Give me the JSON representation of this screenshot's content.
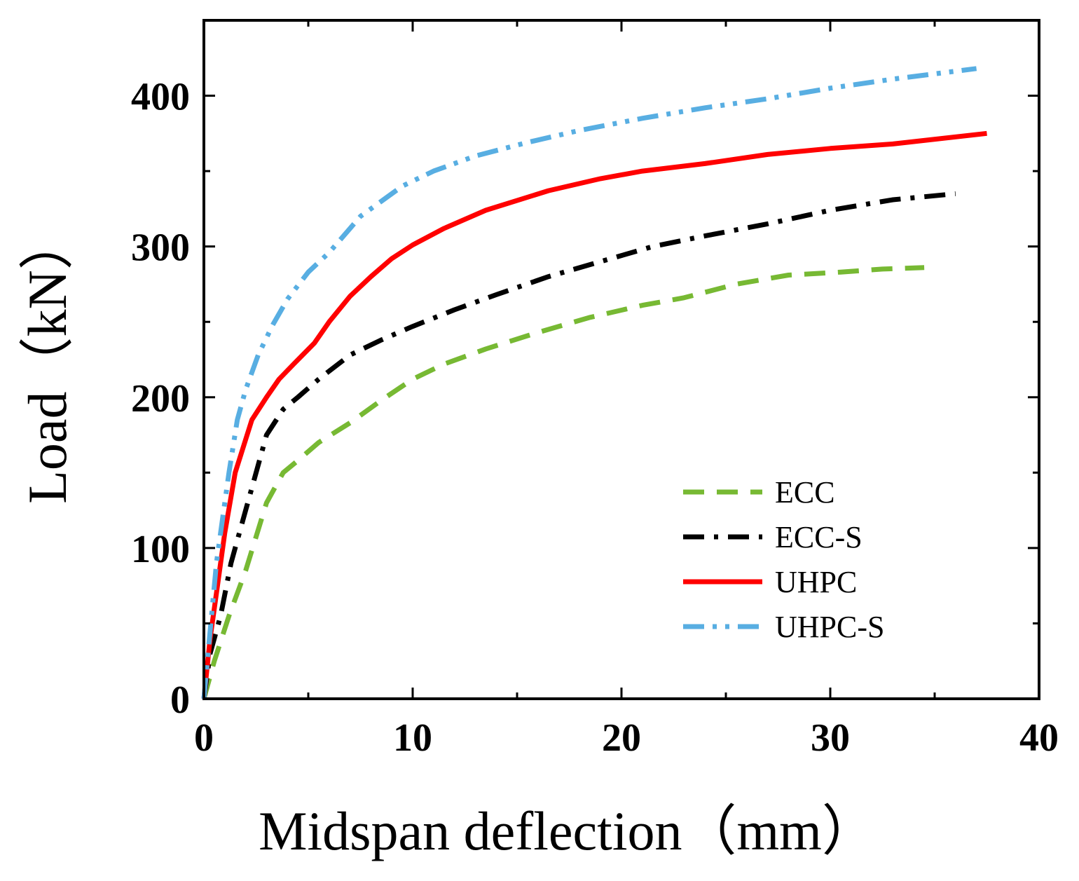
{
  "chart_data": {
    "type": "line",
    "title": "",
    "xlabel": "Midspan deflection（mm）",
    "ylabel": "Load（kN）",
    "xlim": [
      0,
      40
    ],
    "ylim": [
      0,
      450
    ],
    "x_ticks": [
      0,
      10,
      20,
      30,
      40
    ],
    "y_ticks": [
      0,
      100,
      200,
      300,
      400
    ],
    "grid": false,
    "legend_position": "lower-right",
    "series": [
      {
        "name": "ECC",
        "color": "#77b933",
        "dash": "dashed",
        "x": [
          0,
          0.5,
          1.2,
          2.0,
          3.0,
          3.8,
          4.5,
          5.5,
          7.0,
          8.5,
          10.0,
          11.5,
          13.5,
          16.0,
          18.5,
          21.0,
          23.0,
          25.5,
          28.0,
          30.5,
          32.5,
          34.5
        ],
        "y": [
          0,
          25,
          55,
          85,
          130,
          150,
          158,
          170,
          183,
          198,
          212,
          222,
          232,
          243,
          253,
          261,
          266,
          275,
          281,
          283,
          285,
          286
        ]
      },
      {
        "name": "ECC-S",
        "color": "#000000",
        "dash": "dash-dot",
        "x": [
          0,
          0.3,
          0.8,
          1.3,
          2.0,
          3.0,
          3.8,
          4.5,
          5.5,
          7.0,
          8.5,
          10.0,
          12.0,
          14.0,
          16.5,
          19.0,
          21.5,
          24.0,
          27.0,
          30.0,
          33.0,
          36.0
        ],
        "y": [
          0,
          30,
          55,
          90,
          125,
          175,
          192,
          200,
          212,
          228,
          238,
          247,
          258,
          268,
          280,
          290,
          300,
          307,
          315,
          324,
          331,
          335
        ]
      },
      {
        "name": "UHPC",
        "color": "#ff0000",
        "dash": "solid",
        "x": [
          0,
          0.3,
          0.7,
          1.0,
          1.5,
          2.3,
          3.0,
          3.6,
          4.3,
          5.3,
          6.0,
          7.0,
          8.0,
          9.0,
          10.0,
          11.5,
          13.5,
          16.5,
          19.0,
          21.0,
          24.0,
          27.0,
          30.0,
          33.0,
          37.5
        ],
        "y": [
          0,
          40,
          80,
          110,
          150,
          185,
          200,
          212,
          222,
          236,
          250,
          267,
          280,
          292,
          301,
          312,
          324,
          337,
          345,
          350,
          355,
          361,
          365,
          368,
          375
        ]
      },
      {
        "name": "UHPC-S",
        "color": "#58aee2",
        "dash": "dash-dot-dot",
        "x": [
          0,
          0.3,
          0.6,
          0.9,
          1.2,
          1.6,
          2.0,
          2.6,
          3.3,
          4.0,
          5.0,
          6.0,
          7.0,
          7.5,
          8.5,
          9.5,
          11.0,
          13.0,
          15.5,
          18.0,
          21.0,
          24.0,
          27.0,
          30.0,
          33.0,
          37.0
        ],
        "y": [
          0,
          45,
          90,
          120,
          150,
          185,
          205,
          228,
          248,
          265,
          283,
          296,
          312,
          320,
          330,
          340,
          350,
          360,
          369,
          377,
          385,
          392,
          398,
          405,
          411,
          418
        ]
      }
    ]
  }
}
